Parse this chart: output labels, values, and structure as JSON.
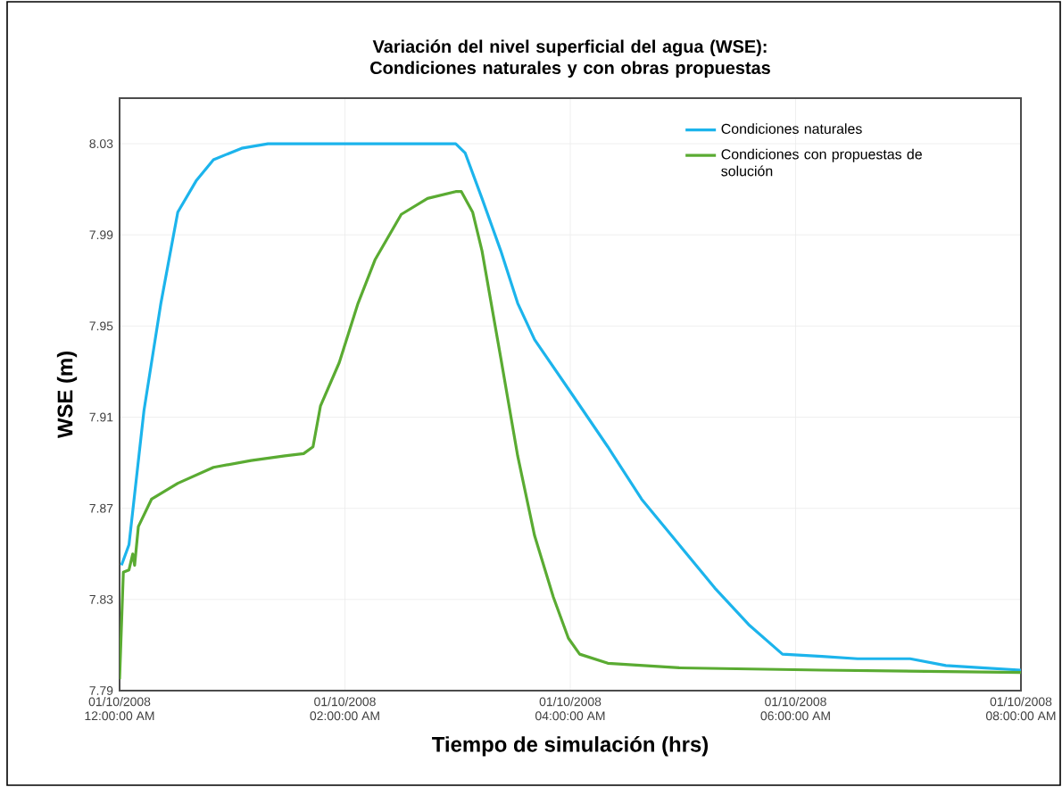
{
  "chart_data": {
    "type": "line",
    "title": "Variación del nivel superficial del agua (WSE): Condiciones naturales y con obras propuestas",
    "xlabel": "Tiempo de simulación (hrs)",
    "ylabel": "WSE (m)",
    "xlim": [
      "2008-10-01T00:00",
      "2008-10-01T08:00"
    ],
    "ylim": [
      7.79,
      8.05
    ],
    "xticks": [
      {
        "value": "2008-10-01T00:00",
        "label": "01/10/2008\n12:00:00 AM"
      },
      {
        "value": "2008-10-01T02:00",
        "label": "01/10/2008\n02:00:00 AM"
      },
      {
        "value": "2008-10-01T04:00",
        "label": "01/10/2008\n04:00:00 AM"
      },
      {
        "value": "2008-10-01T06:00",
        "label": "01/10/2008\n06:00:00 AM"
      },
      {
        "value": "2008-10-01T08:00",
        "label": "01/10/2008\n08:00:00 AM"
      }
    ],
    "yticks": [
      7.79,
      7.83,
      7.87,
      7.91,
      7.95,
      7.99,
      8.03
    ],
    "grid": true,
    "legend": "top right",
    "marker": "none",
    "line_style": "solid",
    "series": [
      {
        "name": "Condiciones naturales",
        "color": "#1cb4ec",
        "x": [
          "2008-10-01T00:01",
          "2008-10-01T00:05",
          "2008-10-01T00:13",
          "2008-10-01T00:22",
          "2008-10-01T00:31",
          "2008-10-01T00:41",
          "2008-10-01T00:50",
          "2008-10-01T01:05",
          "2008-10-01T01:19",
          "2008-10-01T02:59",
          "2008-10-01T03:04",
          "2008-10-01T03:13",
          "2008-10-01T03:23",
          "2008-10-01T03:32",
          "2008-10-01T03:41",
          "2008-10-01T04:01",
          "2008-10-01T04:20",
          "2008-10-01T04:38",
          "2008-10-01T04:58",
          "2008-10-01T05:17",
          "2008-10-01T05:35",
          "2008-10-01T05:53",
          "2008-10-01T06:14",
          "2008-10-01T06:33",
          "2008-10-01T07:01",
          "2008-10-01T07:20",
          "2008-10-01T07:39",
          "2008-10-01T08:00"
        ],
        "values": [
          7.845,
          7.854,
          7.913,
          7.96,
          8.0,
          8.014,
          8.023,
          8.028,
          8.03,
          8.03,
          8.026,
          8.006,
          7.983,
          7.96,
          7.944,
          7.92,
          7.897,
          7.874,
          7.854,
          7.835,
          7.819,
          7.806,
          7.805,
          7.804,
          7.804,
          7.801,
          7.8,
          7.799
        ]
      },
      {
        "name": "Condiciones con propuestas de solución",
        "color": "#5aab32",
        "x": [
          "2008-10-01T00:00",
          "2008-10-01T00:02",
          "2008-10-01T00:05",
          "2008-10-01T00:07",
          "2008-10-01T00:08",
          "2008-10-01T00:10",
          "2008-10-01T00:17",
          "2008-10-01T00:31",
          "2008-10-01T00:50",
          "2008-10-01T01:10",
          "2008-10-01T01:28",
          "2008-10-01T01:38",
          "2008-10-01T01:43",
          "2008-10-01T01:47",
          "2008-10-01T01:57",
          "2008-10-01T02:07",
          "2008-10-01T02:16",
          "2008-10-01T02:30",
          "2008-10-01T02:44",
          "2008-10-01T02:59",
          "2008-10-01T03:02",
          "2008-10-01T03:08",
          "2008-10-01T03:13",
          "2008-10-01T03:23",
          "2008-10-01T03:32",
          "2008-10-01T03:41",
          "2008-10-01T03:51",
          "2008-10-01T03:59",
          "2008-10-01T04:05",
          "2008-10-01T04:20",
          "2008-10-01T04:58",
          "2008-10-01T06:14",
          "2008-10-01T08:00"
        ],
        "values": [
          7.795,
          7.842,
          7.843,
          7.85,
          7.845,
          7.862,
          7.874,
          7.881,
          7.888,
          7.891,
          7.893,
          7.894,
          7.897,
          7.915,
          7.934,
          7.96,
          7.979,
          7.999,
          8.006,
          8.009,
          8.009,
          8.0,
          7.983,
          7.936,
          7.893,
          7.858,
          7.831,
          7.813,
          7.806,
          7.802,
          7.8,
          7.799,
          7.798
        ]
      }
    ]
  }
}
